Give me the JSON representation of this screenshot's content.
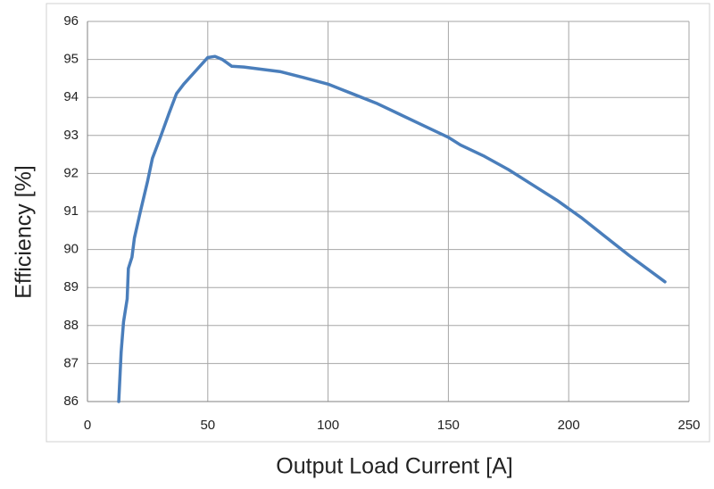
{
  "chart_data": {
    "type": "line",
    "x_label": "Output Load Current [A]",
    "y_label": "Efficiency [%]",
    "series": [
      {
        "name": "Efficiency",
        "color": "#4a7ebb",
        "x": [
          13,
          14,
          15,
          16.5,
          17,
          18.5,
          19.5,
          22,
          25,
          27,
          30,
          34,
          37,
          40,
          45,
          50,
          53,
          56,
          60,
          65,
          80,
          90,
          100,
          110,
          120,
          130,
          140,
          150,
          155,
          165,
          175,
          185,
          195,
          205,
          215,
          225,
          240
        ],
        "values": [
          86.0,
          87.3,
          88.1,
          88.7,
          89.5,
          89.8,
          90.3,
          91.0,
          91.8,
          92.4,
          92.9,
          93.6,
          94.1,
          94.35,
          94.7,
          95.05,
          95.08,
          95.0,
          94.82,
          94.8,
          94.68,
          94.52,
          94.35,
          94.1,
          93.85,
          93.55,
          93.25,
          92.95,
          92.75,
          92.45,
          92.1,
          91.7,
          91.3,
          90.85,
          90.35,
          89.85,
          89.15
        ]
      }
    ],
    "xlim": [
      0,
      250
    ],
    "xticks": [
      0,
      50,
      100,
      150,
      200,
      250
    ],
    "ylim": [
      86,
      96
    ],
    "yticks": [
      86,
      87,
      88,
      89,
      90,
      91,
      92,
      93,
      94,
      95,
      96
    ],
    "grid": true
  }
}
